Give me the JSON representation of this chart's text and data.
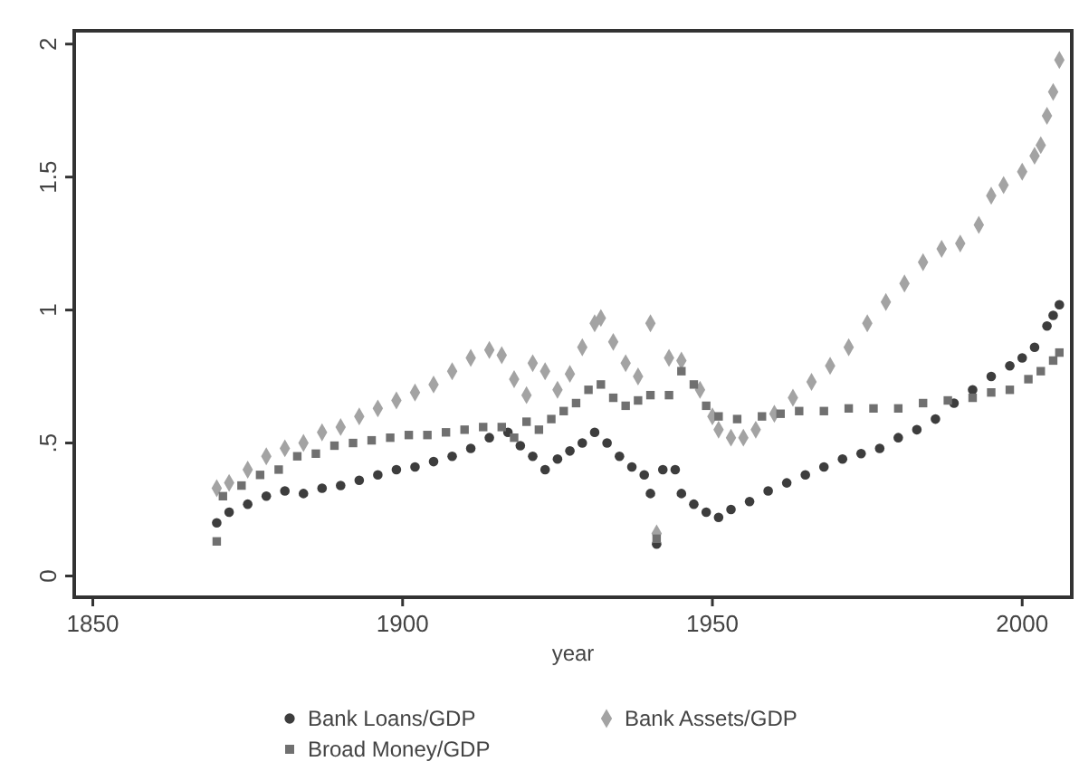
{
  "chart_data": {
    "type": "scatter",
    "xlabel": "year",
    "xlim": [
      1847,
      2008
    ],
    "xticks": [
      1850,
      1900,
      1950,
      2000
    ],
    "ylim": [
      -0.08,
      2.05
    ],
    "yticks": [
      0,
      {
        "value": 0.5,
        "label": ".5"
      },
      1,
      1.5,
      2
    ],
    "grid": false,
    "legend": "bottom",
    "series": [
      {
        "name": "Bank Loans/GDP",
        "color": "#3d3d3d",
        "marker": "circle",
        "x": [
          1870,
          1872,
          1875,
          1878,
          1881,
          1884,
          1887,
          1890,
          1893,
          1896,
          1899,
          1902,
          1905,
          1908,
          1911,
          1914,
          1917,
          1919,
          1921,
          1923,
          1925,
          1927,
          1929,
          1931,
          1933,
          1935,
          1937,
          1939,
          1940,
          1941,
          1942,
          1944,
          1945,
          1947,
          1949,
          1951,
          1953,
          1956,
          1959,
          1962,
          1965,
          1968,
          1971,
          1974,
          1977,
          1980,
          1983,
          1986,
          1989,
          1992,
          1995,
          1998,
          2000,
          2002,
          2004,
          2005,
          2006
        ],
        "values": [
          0.2,
          0.24,
          0.27,
          0.3,
          0.32,
          0.31,
          0.33,
          0.34,
          0.36,
          0.38,
          0.4,
          0.41,
          0.43,
          0.45,
          0.48,
          0.52,
          0.54,
          0.49,
          0.45,
          0.4,
          0.44,
          0.47,
          0.5,
          0.54,
          0.5,
          0.45,
          0.41,
          0.38,
          0.31,
          0.12,
          0.4,
          0.4,
          0.31,
          0.27,
          0.24,
          0.22,
          0.25,
          0.28,
          0.32,
          0.35,
          0.38,
          0.41,
          0.44,
          0.46,
          0.48,
          0.52,
          0.55,
          0.59,
          0.65,
          0.7,
          0.75,
          0.79,
          0.82,
          0.86,
          0.94,
          0.98,
          1.02
        ]
      },
      {
        "name": "Bank Assets/GDP",
        "color": "#a3a3a3",
        "marker": "diamond",
        "x": [
          1870,
          1872,
          1875,
          1878,
          1881,
          1884,
          1887,
          1890,
          1893,
          1896,
          1899,
          1902,
          1905,
          1908,
          1911,
          1914,
          1916,
          1918,
          1920,
          1921,
          1923,
          1925,
          1927,
          1929,
          1931,
          1932,
          1934,
          1936,
          1938,
          1940,
          1941,
          1943,
          1945,
          1948,
          1950,
          1951,
          1953,
          1955,
          1957,
          1960,
          1963,
          1966,
          1969,
          1972,
          1975,
          1978,
          1981,
          1984,
          1987,
          1990,
          1993,
          1995,
          1997,
          2000,
          2002,
          2003,
          2004,
          2005,
          2006
        ],
        "values": [
          0.33,
          0.35,
          0.4,
          0.45,
          0.48,
          0.5,
          0.54,
          0.56,
          0.6,
          0.63,
          0.66,
          0.69,
          0.72,
          0.77,
          0.82,
          0.85,
          0.83,
          0.74,
          0.68,
          0.8,
          0.77,
          0.7,
          0.76,
          0.86,
          0.95,
          0.97,
          0.88,
          0.8,
          0.75,
          0.95,
          0.16,
          0.82,
          0.81,
          0.7,
          0.6,
          0.55,
          0.52,
          0.52,
          0.55,
          0.61,
          0.67,
          0.73,
          0.79,
          0.86,
          0.95,
          1.03,
          1.1,
          1.18,
          1.23,
          1.25,
          1.32,
          1.43,
          1.47,
          1.52,
          1.58,
          1.62,
          1.73,
          1.82,
          1.94
        ]
      },
      {
        "name": "Broad Money/GDP",
        "color": "#707070",
        "marker": "square",
        "x": [
          1870,
          1871,
          1874,
          1877,
          1880,
          1883,
          1886,
          1889,
          1892,
          1895,
          1898,
          1901,
          1904,
          1907,
          1910,
          1913,
          1916,
          1918,
          1920,
          1922,
          1924,
          1926,
          1928,
          1930,
          1932,
          1934,
          1936,
          1938,
          1940,
          1941,
          1943,
          1945,
          1947,
          1949,
          1951,
          1954,
          1958,
          1961,
          1964,
          1968,
          1972,
          1976,
          1980,
          1984,
          1988,
          1992,
          1995,
          1998,
          2001,
          2003,
          2005,
          2006
        ],
        "values": [
          0.13,
          0.3,
          0.34,
          0.38,
          0.4,
          0.45,
          0.46,
          0.49,
          0.5,
          0.51,
          0.52,
          0.53,
          0.53,
          0.54,
          0.55,
          0.56,
          0.56,
          0.52,
          0.58,
          0.55,
          0.59,
          0.62,
          0.65,
          0.7,
          0.72,
          0.67,
          0.64,
          0.66,
          0.68,
          0.14,
          0.68,
          0.77,
          0.72,
          0.64,
          0.6,
          0.59,
          0.6,
          0.61,
          0.62,
          0.62,
          0.63,
          0.63,
          0.63,
          0.65,
          0.66,
          0.67,
          0.69,
          0.7,
          0.74,
          0.77,
          0.81,
          0.84
        ]
      }
    ]
  }
}
